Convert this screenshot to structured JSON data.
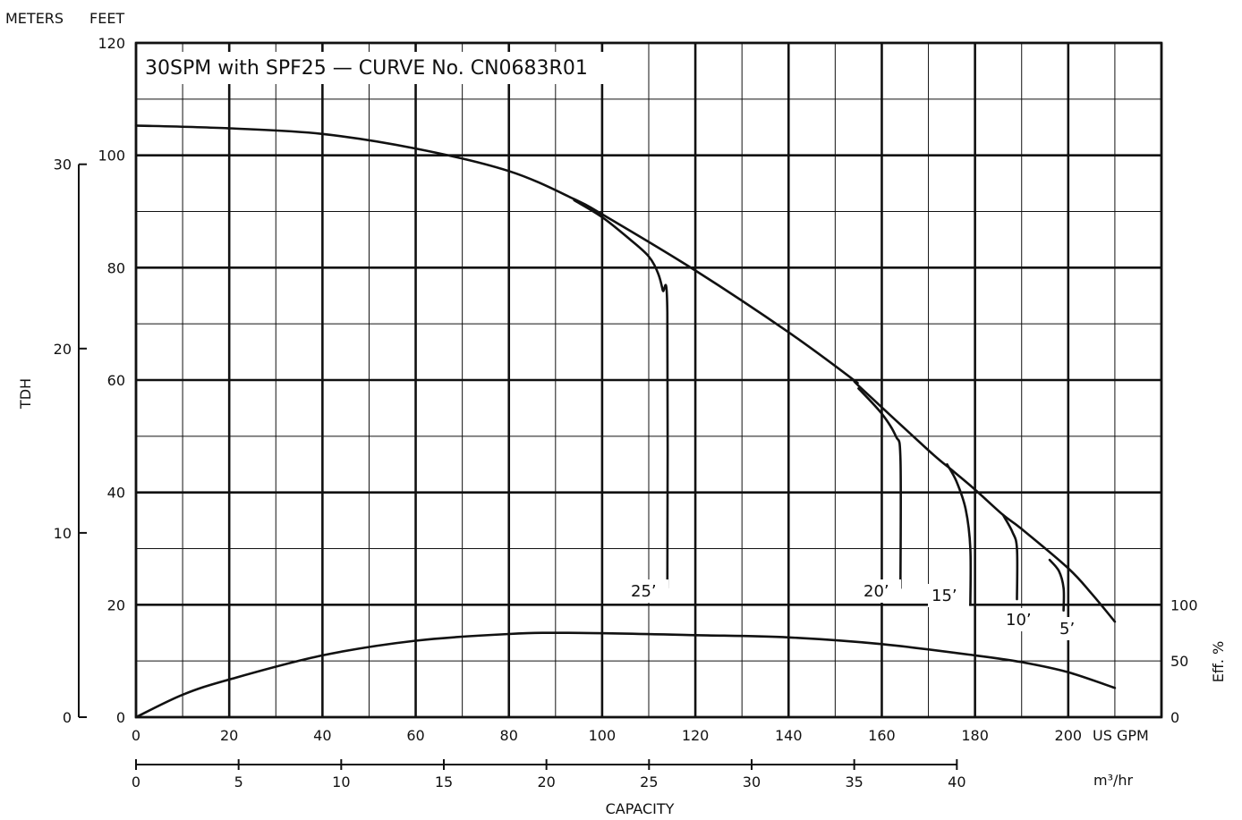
{
  "chart_data": {
    "type": "line",
    "title": "30SPM with SPF25  —  CURVE No. CN0683R01",
    "x_axis": {
      "unit_label": "US GPM",
      "range": [
        0,
        220
      ],
      "ticks": [
        0,
        20,
        40,
        60,
        80,
        100,
        120,
        140,
        160,
        180,
        200
      ]
    },
    "x_axis_secondary": {
      "unit_label": "m³/hr",
      "range": [
        0,
        40
      ],
      "ticks": [
        0,
        5,
        10,
        15,
        20,
        25,
        30,
        35,
        40
      ]
    },
    "xlabel": "CAPACITY",
    "y_axis_feet": {
      "unit_label": "FEET",
      "range": [
        0,
        120
      ],
      "ticks": [
        0,
        20,
        40,
        60,
        80,
        100,
        120
      ]
    },
    "y_axis_meters": {
      "unit_label": "METERS",
      "range": [
        0,
        30
      ],
      "ticks": [
        0,
        10,
        20,
        30
      ]
    },
    "ylabel": "TDH",
    "y_axis_efficiency": {
      "unit_label": "Eff. %",
      "range": [
        0,
        100
      ],
      "ticks": [
        0,
        50,
        100
      ]
    },
    "grid": true,
    "series": [
      {
        "name": "",
        "role": "head",
        "points": [
          [
            0,
            105.3
          ],
          [
            20,
            104.8
          ],
          [
            40,
            103.8
          ],
          [
            60,
            101.2
          ],
          [
            80,
            97.2
          ],
          [
            94,
            92.2
          ],
          [
            100,
            89.5
          ],
          [
            120,
            79.5
          ],
          [
            140,
            68.5
          ],
          [
            154,
            60
          ],
          [
            155,
            59
          ],
          [
            170,
            47.5
          ],
          [
            175,
            44
          ],
          [
            180,
            40.5
          ],
          [
            186,
            36
          ],
          [
            190,
            33.5
          ],
          [
            200,
            26.5
          ],
          [
            205,
            22
          ],
          [
            210,
            17
          ]
        ]
      },
      {
        "name": "25’",
        "role": "head",
        "points": [
          [
            94,
            92
          ],
          [
            100,
            89
          ],
          [
            106,
            85
          ],
          [
            110,
            82
          ],
          [
            112,
            79
          ],
          [
            113,
            76
          ],
          [
            114,
            72
          ],
          [
            114,
            23
          ]
        ]
      },
      {
        "name": "20’",
        "role": "head",
        "points": [
          [
            155,
            58.5
          ],
          [
            160,
            54
          ],
          [
            163,
            50
          ],
          [
            164,
            46
          ],
          [
            164,
            23
          ]
        ]
      },
      {
        "name": "15’",
        "role": "head",
        "points": [
          [
            174,
            45
          ],
          [
            176,
            42
          ],
          [
            178,
            37
          ],
          [
            179,
            30
          ],
          [
            179,
            20
          ]
        ]
      },
      {
        "name": "10’",
        "role": "head",
        "points": [
          [
            186,
            36
          ],
          [
            188,
            33
          ],
          [
            189,
            30
          ],
          [
            189,
            21
          ]
        ]
      },
      {
        "name": "5’",
        "role": "head",
        "points": [
          [
            196,
            28
          ],
          [
            198,
            26
          ],
          [
            199,
            23
          ],
          [
            199,
            19
          ]
        ]
      },
      {
        "name": "",
        "role": "efficiency",
        "points": [
          [
            0,
            0
          ],
          [
            10,
            20
          ],
          [
            20,
            33.5
          ],
          [
            40,
            55
          ],
          [
            60,
            68
          ],
          [
            80,
            74
          ],
          [
            95,
            75
          ],
          [
            120,
            73
          ],
          [
            140,
            71
          ],
          [
            160,
            65
          ],
          [
            180,
            55
          ],
          [
            190,
            49
          ],
          [
            200,
            40
          ],
          [
            210,
            26
          ]
        ]
      }
    ]
  }
}
